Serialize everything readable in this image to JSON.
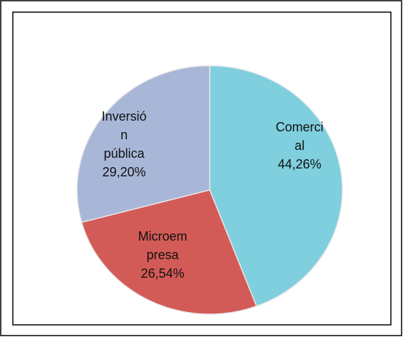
{
  "chart_data": {
    "type": "pie",
    "categories": [
      "Comercial",
      "Microempresa",
      "Inversión pública"
    ],
    "values": [
      44.26,
      26.54,
      29.2
    ],
    "value_labels": [
      "44,26%",
      "26,54%",
      "29,20%"
    ],
    "colors": [
      "#7fcfde",
      "#d35b57",
      "#a8b7d8"
    ]
  }
}
